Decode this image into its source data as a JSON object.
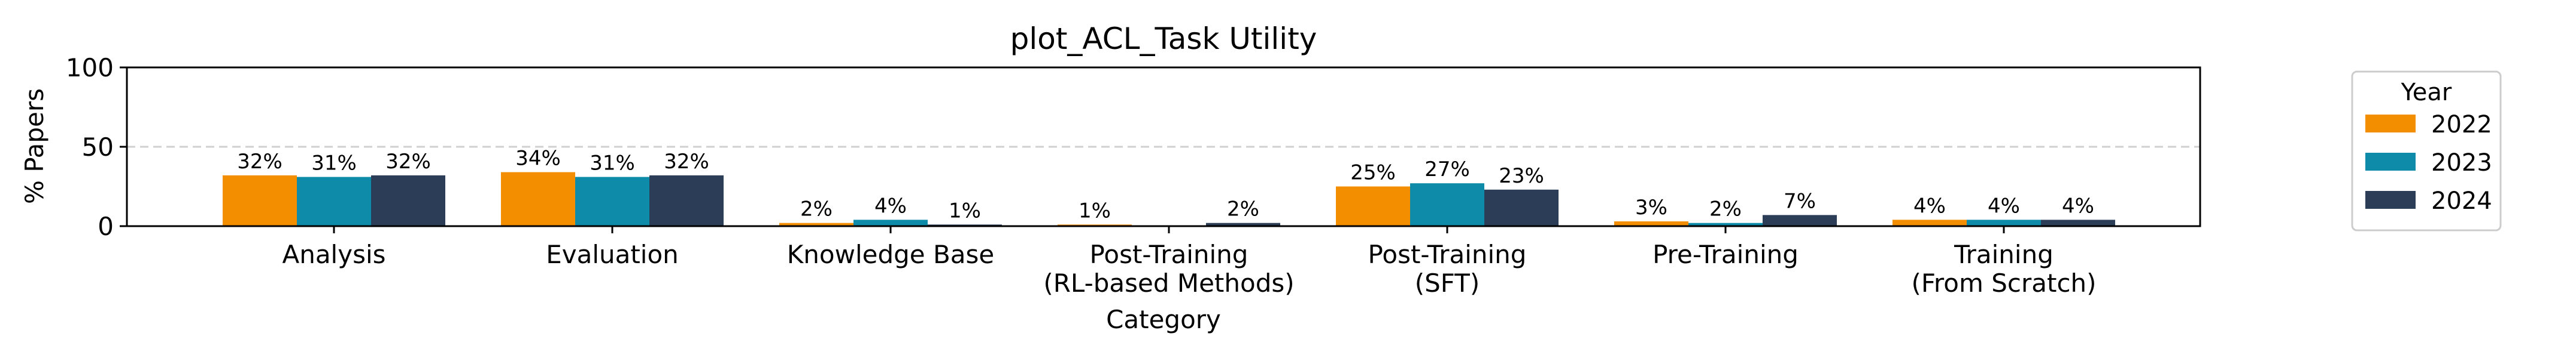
{
  "chart_data": {
    "type": "bar",
    "title": "plot_ACL_Task Utility",
    "xlabel": "Category",
    "ylabel": "% Papers",
    "ylim": [
      0,
      100
    ],
    "yticks": [
      0,
      50,
      100
    ],
    "grid": "y at 50 (dashed)",
    "legend_placement": "outside right",
    "legend_title": "Year",
    "categories": [
      "Analysis",
      "Evaluation",
      "Knowledge Base",
      "Post-Training\n(RL-based Methods)",
      "Post-Training\n(SFT)",
      "Pre-Training",
      "Training\n(From Scratch)"
    ],
    "series": [
      {
        "name": "2022",
        "color": "#F28E00",
        "values": [
          32,
          34,
          2,
          1,
          25,
          3,
          4
        ],
        "labels": [
          "32%",
          "34%",
          "2%",
          "1%",
          "25%",
          "3%",
          "4%"
        ]
      },
      {
        "name": "2023",
        "color": "#0E8BA8",
        "values": [
          31,
          31,
          4,
          0,
          27,
          2,
          4
        ],
        "labels": [
          "31%",
          "31%",
          "4%",
          "",
          "27%",
          "2%",
          "4%"
        ]
      },
      {
        "name": "2024",
        "color": "#2C3E57",
        "values": [
          32,
          32,
          1,
          2,
          23,
          7,
          4
        ],
        "labels": [
          "32%",
          "32%",
          "1%",
          "2%",
          "23%",
          "7%",
          "4%"
        ]
      }
    ]
  }
}
